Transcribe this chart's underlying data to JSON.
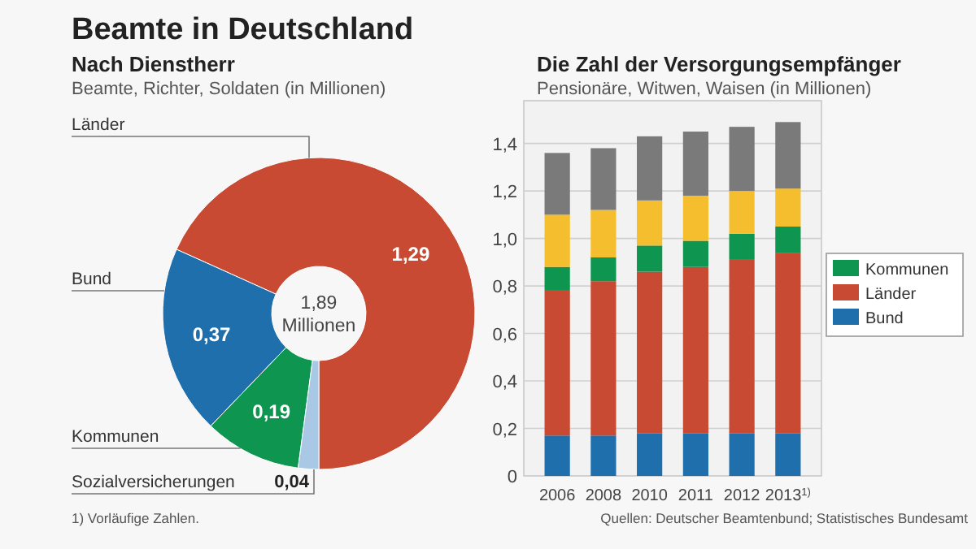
{
  "chart_data": [
    {
      "type": "donut",
      "title": "Nach Dienstherr",
      "subtitle": "Beamte, Richter, Soldaten (in Millionen)",
      "categories": [
        "Länder",
        "Bund",
        "Kommunen",
        "Sozialversicherungen"
      ],
      "values": [
        1.29,
        0.37,
        0.19,
        0.04
      ],
      "colors": [
        "#c94a32",
        "#1f6fad",
        "#0e9650",
        "#a8c8e6"
      ],
      "value_labels": [
        "1,29",
        "0,37",
        "0,19",
        "0,04"
      ],
      "annotations": [
        "Beamte in Deutschland",
        "1,89 Millionen",
        "1) Vorläufige Zahlen."
      ]
    },
    {
      "type": "bar",
      "title": "Die Zahl der Versorgungsempfänger",
      "subtitle": "Pensionäre, Witwen, Waisen (in Millionen)",
      "categories": [
        "2006",
        "2008",
        "2010",
        "2011",
        "2012",
        "2013$^{1)}$"
      ],
      "stacked": true,
      "series": [
        {
          "name": "Bund",
          "color": "#1f6fad",
          "values": [
            0.17,
            0.17,
            0.18,
            0.18,
            0.18,
            0.18
          ]
        },
        {
          "name": "Länder",
          "color": "#c94a32",
          "values": [
            0.61,
            0.65,
            0.68,
            0.7,
            0.73,
            0.76
          ]
        },
        {
          "name": "Kommunen",
          "color": "#0e9650",
          "values": [
            0.1,
            0.1,
            0.11,
            0.11,
            0.11,
            0.11
          ]
        },
        {
          "color": "#f5be2e",
          "values": [
            0.22,
            0.2,
            0.19,
            0.19,
            0.18,
            0.16
          ]
        },
        {
          "color": "#7a7a7a",
          "values": [
            0.26,
            0.26,
            0.27,
            0.27,
            0.27,
            0.28
          ]
        }
      ],
      "ylim": [
        0,
        1.58
      ],
      "yticks": [
        0,
        {
          "value": 0.2,
          "label": "0,2"
        },
        {
          "value": 0.4,
          "label": "0,4"
        },
        {
          "value": 0.6,
          "label": "0,6"
        },
        {
          "value": 0.8,
          "label": "0,8"
        },
        {
          "value": 1.0,
          "label": "1,0"
        },
        {
          "value": 1.2,
          "label": "1,2"
        },
        {
          "value": 1.4,
          "label": "1,4"
        }
      ],
      "grid": "y",
      "legend": "right",
      "annotations": [
        "Quellen: Deutscher Beamtenbund; Statistisches Bundesamt"
      ]
    }
  ]
}
